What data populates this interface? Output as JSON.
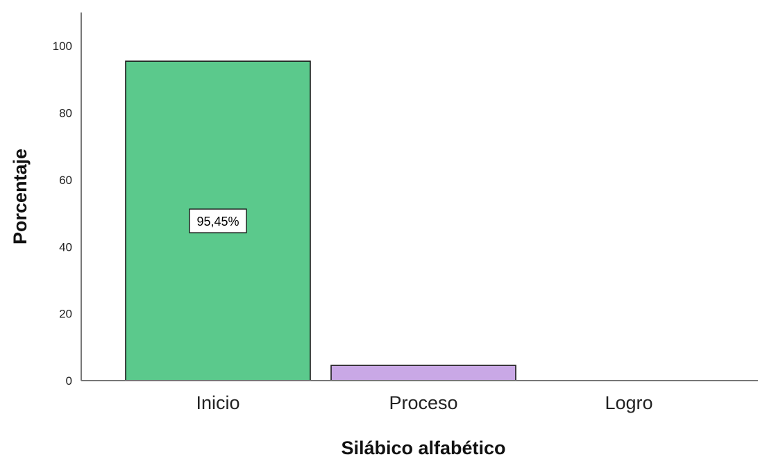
{
  "chart_data": {
    "type": "bar",
    "categories": [
      "Inicio",
      "Proceso",
      "Logro"
    ],
    "values": [
      95.45,
      4.55,
      0
    ],
    "data_labels": [
      "95,45%",
      "",
      ""
    ],
    "colors": [
      "#5BC98C",
      "#C9A8E6",
      "#5BC98C"
    ],
    "xlabel": "Silábico alfabético",
    "ylabel": "Porcentaje",
    "ylim": [
      0,
      110
    ],
    "yticks": [
      0,
      20,
      40,
      60,
      80,
      100
    ],
    "grid": false,
    "legend": "none"
  }
}
